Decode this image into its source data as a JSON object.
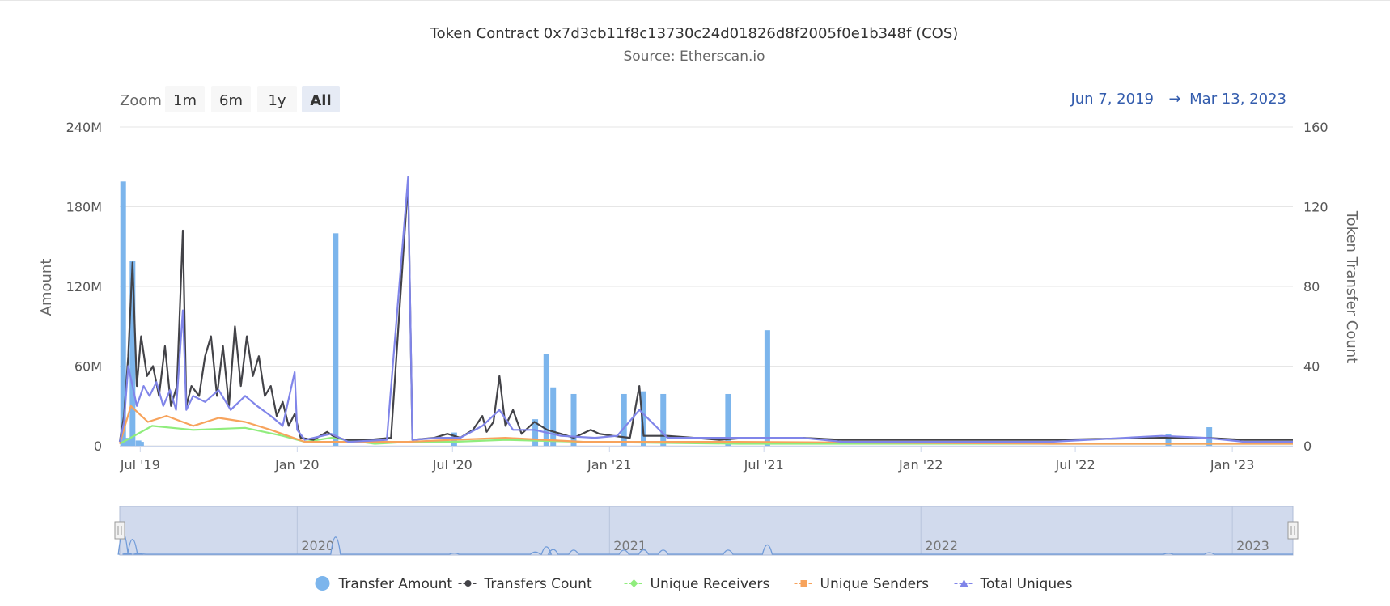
{
  "title": "Token Contract 0x7d3cb11f8c13730c24d01826d8f2005f0e1b348f (COS)",
  "subtitle": "Source: Etherscan.io",
  "zoom": {
    "label": "Zoom",
    "buttons": [
      "1m",
      "6m",
      "1y",
      "All"
    ],
    "selected": "All"
  },
  "range": {
    "from": "Jun 7, 2019",
    "arrow": "→",
    "to": "Mar 13, 2023"
  },
  "colors": {
    "transfer_amount": "#7cb5ec",
    "transfers_count": "#434348",
    "unique_receivers": "#90ed7d",
    "unique_senders": "#f7a35c",
    "total_uniques": "#8085e9"
  },
  "navigator": {
    "labels": [
      "2020",
      "2021",
      "2022",
      "2023"
    ]
  },
  "chart_data": {
    "type": "bar",
    "x_axis": {
      "type": "datetime",
      "tick_labels": [
        "Jul '19",
        "Jan '20",
        "Jul '20",
        "Jan '21",
        "Jul '21",
        "Jan '22",
        "Jul '22",
        "Jan '23"
      ],
      "range": [
        "2019-06-07",
        "2023-03-13"
      ]
    },
    "y_axis_left": {
      "label": "Amount",
      "ylim": [
        0,
        240000000
      ],
      "tick_labels": [
        "0",
        "60M",
        "120M",
        "180M",
        "240M"
      ]
    },
    "y_axis_right": {
      "label": "Token Transfer Count",
      "ylim": [
        0,
        160
      ],
      "tick_labels": [
        "0",
        "40",
        "80",
        "120",
        "160"
      ]
    },
    "legend": {
      "position": "bottom-center"
    },
    "grid": true,
    "series": [
      {
        "name": "Transfer Amount",
        "type": "column",
        "axis": "left",
        "points": [
          [
            "2019-06-11",
            199000000
          ],
          [
            "2019-06-16",
            6000000
          ],
          [
            "2019-06-22",
            139000000
          ],
          [
            "2019-06-29",
            4000000
          ],
          [
            "2019-07-02",
            3000000
          ],
          [
            "2020-02-15",
            160000000
          ],
          [
            "2020-07-03",
            10000000
          ],
          [
            "2020-10-06",
            20000000
          ],
          [
            "2020-10-19",
            69000000
          ],
          [
            "2020-10-27",
            44000000
          ],
          [
            "2020-11-20",
            39000000
          ],
          [
            "2021-01-18",
            39000000
          ],
          [
            "2021-02-10",
            41000000
          ],
          [
            "2021-03-05",
            39000000
          ],
          [
            "2021-05-20",
            39000000
          ],
          [
            "2021-07-05",
            87000000
          ],
          [
            "2022-10-18",
            9000000
          ],
          [
            "2022-12-05",
            14000000
          ]
        ]
      },
      {
        "name": "Transfers Count",
        "type": "line",
        "axis": "right",
        "points": [
          [
            "2019-06-07",
            2
          ],
          [
            "2019-06-12",
            15
          ],
          [
            "2019-06-17",
            45
          ],
          [
            "2019-06-22",
            92
          ],
          [
            "2019-06-27",
            30
          ],
          [
            "2019-07-02",
            55
          ],
          [
            "2019-07-09",
            35
          ],
          [
            "2019-07-16",
            40
          ],
          [
            "2019-07-23",
            25
          ],
          [
            "2019-07-30",
            50
          ],
          [
            "2019-08-06",
            20
          ],
          [
            "2019-08-13",
            30
          ],
          [
            "2019-08-20",
            108
          ],
          [
            "2019-08-24",
            20
          ],
          [
            "2019-08-30",
            30
          ],
          [
            "2019-09-08",
            25
          ],
          [
            "2019-09-15",
            45
          ],
          [
            "2019-09-22",
            55
          ],
          [
            "2019-09-29",
            25
          ],
          [
            "2019-10-06",
            50
          ],
          [
            "2019-10-13",
            20
          ],
          [
            "2019-10-20",
            60
          ],
          [
            "2019-10-27",
            30
          ],
          [
            "2019-11-03",
            55
          ],
          [
            "2019-11-10",
            35
          ],
          [
            "2019-11-17",
            45
          ],
          [
            "2019-11-24",
            25
          ],
          [
            "2019-12-01",
            30
          ],
          [
            "2019-12-08",
            15
          ],
          [
            "2019-12-15",
            22
          ],
          [
            "2019-12-22",
            10
          ],
          [
            "2019-12-29",
            16
          ],
          [
            "2020-01-05",
            4
          ],
          [
            "2020-01-20",
            3
          ],
          [
            "2020-02-05",
            7
          ],
          [
            "2020-02-12",
            5
          ],
          [
            "2020-02-26",
            3
          ],
          [
            "2020-03-25",
            3
          ],
          [
            "2020-04-20",
            4
          ],
          [
            "2020-05-10",
            133
          ],
          [
            "2020-05-15",
            3
          ],
          [
            "2020-06-10",
            4
          ],
          [
            "2020-06-25",
            6
          ],
          [
            "2020-07-10",
            4
          ],
          [
            "2020-07-25",
            8
          ],
          [
            "2020-08-05",
            15
          ],
          [
            "2020-08-10",
            7
          ],
          [
            "2020-08-18",
            12
          ],
          [
            "2020-08-25",
            35
          ],
          [
            "2020-09-01",
            10
          ],
          [
            "2020-09-10",
            18
          ],
          [
            "2020-09-20",
            6
          ],
          [
            "2020-10-05",
            12
          ],
          [
            "2020-10-20",
            8
          ],
          [
            "2020-11-05",
            6
          ],
          [
            "2020-11-20",
            4
          ],
          [
            "2020-12-10",
            8
          ],
          [
            "2020-12-20",
            6
          ],
          [
            "2021-01-05",
            5
          ],
          [
            "2021-01-25",
            4
          ],
          [
            "2021-02-05",
            30
          ],
          [
            "2021-02-10",
            5
          ],
          [
            "2021-03-10",
            5
          ],
          [
            "2021-04-10",
            4
          ],
          [
            "2021-05-10",
            3
          ],
          [
            "2021-06-10",
            4
          ],
          [
            "2021-08-15",
            4
          ],
          [
            "2021-10-01",
            3
          ],
          [
            "2022-06-01",
            3
          ],
          [
            "2022-10-10",
            4
          ],
          [
            "2022-12-01",
            4
          ],
          [
            "2023-01-15",
            3
          ],
          [
            "2023-03-13",
            3
          ]
        ]
      },
      {
        "name": "Unique Receivers",
        "type": "line",
        "axis": "right",
        "points": [
          [
            "2019-06-07",
            1
          ],
          [
            "2019-07-15",
            10
          ],
          [
            "2019-09-01",
            8
          ],
          [
            "2019-11-01",
            9
          ],
          [
            "2019-12-15",
            5
          ],
          [
            "2020-01-10",
            2
          ],
          [
            "2020-02-10",
            4
          ],
          [
            "2020-04-01",
            1
          ],
          [
            "2020-05-10",
            2
          ],
          [
            "2020-07-01",
            2
          ],
          [
            "2020-09-01",
            3
          ],
          [
            "2020-12-01",
            2
          ],
          [
            "2021-06-01",
            1
          ],
          [
            "2022-06-01",
            1
          ],
          [
            "2023-03-13",
            1
          ]
        ]
      },
      {
        "name": "Unique Senders",
        "type": "line",
        "axis": "right",
        "points": [
          [
            "2019-06-07",
            1
          ],
          [
            "2019-06-20",
            20
          ],
          [
            "2019-07-10",
            12
          ],
          [
            "2019-08-01",
            15
          ],
          [
            "2019-09-01",
            10
          ],
          [
            "2019-10-01",
            14
          ],
          [
            "2019-11-01",
            12
          ],
          [
            "2019-12-01",
            8
          ],
          [
            "2020-01-10",
            2
          ],
          [
            "2020-03-01",
            2
          ],
          [
            "2020-05-10",
            2
          ],
          [
            "2020-07-01",
            3
          ],
          [
            "2020-09-01",
            4
          ],
          [
            "2020-12-01",
            2
          ],
          [
            "2021-06-01",
            2
          ],
          [
            "2022-06-01",
            1
          ],
          [
            "2023-03-13",
            1
          ]
        ]
      },
      {
        "name": "Total Uniques",
        "type": "line",
        "axis": "right",
        "points": [
          [
            "2019-06-07",
            2
          ],
          [
            "2019-06-12",
            12
          ],
          [
            "2019-06-17",
            40
          ],
          [
            "2019-06-22",
            30
          ],
          [
            "2019-06-27",
            20
          ],
          [
            "2019-07-05",
            30
          ],
          [
            "2019-07-12",
            25
          ],
          [
            "2019-07-20",
            32
          ],
          [
            "2019-07-28",
            20
          ],
          [
            "2019-08-05",
            28
          ],
          [
            "2019-08-12",
            18
          ],
          [
            "2019-08-20",
            68
          ],
          [
            "2019-08-24",
            18
          ],
          [
            "2019-09-01",
            25
          ],
          [
            "2019-09-15",
            22
          ],
          [
            "2019-10-01",
            28
          ],
          [
            "2019-10-15",
            18
          ],
          [
            "2019-11-01",
            25
          ],
          [
            "2019-11-15",
            20
          ],
          [
            "2019-12-01",
            15
          ],
          [
            "2019-12-15",
            10
          ],
          [
            "2019-12-29",
            37
          ],
          [
            "2020-01-01",
            8
          ],
          [
            "2020-01-10",
            3
          ],
          [
            "2020-02-10",
            6
          ],
          [
            "2020-03-01",
            2
          ],
          [
            "2020-04-15",
            3
          ],
          [
            "2020-05-10",
            135
          ],
          [
            "2020-05-15",
            3
          ],
          [
            "2020-06-15",
            4
          ],
          [
            "2020-07-10",
            4
          ],
          [
            "2020-08-05",
            10
          ],
          [
            "2020-08-25",
            18
          ],
          [
            "2020-09-10",
            8
          ],
          [
            "2020-10-05",
            8
          ],
          [
            "2020-11-05",
            5
          ],
          [
            "2020-12-15",
            4
          ],
          [
            "2021-01-10",
            5
          ],
          [
            "2021-02-05",
            18
          ],
          [
            "2021-03-10",
            4
          ],
          [
            "2021-06-10",
            4
          ],
          [
            "2021-08-15",
            4
          ],
          [
            "2021-10-01",
            2
          ],
          [
            "2022-06-01",
            2
          ],
          [
            "2022-10-10",
            5
          ],
          [
            "2022-12-01",
            4
          ],
          [
            "2023-01-15",
            2
          ],
          [
            "2023-03-13",
            2
          ]
        ]
      }
    ]
  }
}
